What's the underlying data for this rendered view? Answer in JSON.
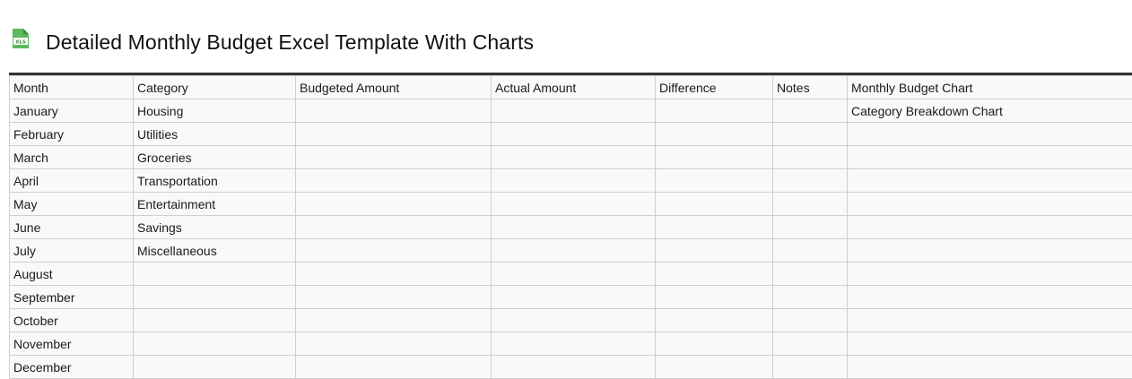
{
  "page": {
    "title": "Detailed Monthly Budget Excel Template With Charts",
    "icon": "xls-file-icon",
    "icon_label": "XLS",
    "accent_color": "#5cb85c"
  },
  "table": {
    "headers": [
      "Month",
      "Category",
      "Budgeted Amount",
      "Actual Amount",
      "Difference",
      "Notes",
      "Monthly Budget Chart"
    ],
    "rows": [
      [
        "January",
        "Housing",
        "",
        "",
        "",
        "",
        "Category Breakdown Chart"
      ],
      [
        "February",
        "Utilities",
        "",
        "",
        "",
        "",
        ""
      ],
      [
        "March",
        "Groceries",
        "",
        "",
        "",
        "",
        ""
      ],
      [
        "April",
        "Transportation",
        "",
        "",
        "",
        "",
        ""
      ],
      [
        "May",
        "Entertainment",
        "",
        "",
        "",
        "",
        ""
      ],
      [
        "June",
        "Savings",
        "",
        "",
        "",
        "",
        ""
      ],
      [
        "July",
        "Miscellaneous",
        "",
        "",
        "",
        "",
        ""
      ],
      [
        "August",
        "",
        "",
        "",
        "",
        "",
        ""
      ],
      [
        "September",
        "",
        "",
        "",
        "",
        "",
        ""
      ],
      [
        "October",
        "",
        "",
        "",
        "",
        "",
        ""
      ],
      [
        "November",
        "",
        "",
        "",
        "",
        "",
        ""
      ],
      [
        "December",
        "",
        "",
        "",
        "",
        "",
        ""
      ]
    ]
  }
}
